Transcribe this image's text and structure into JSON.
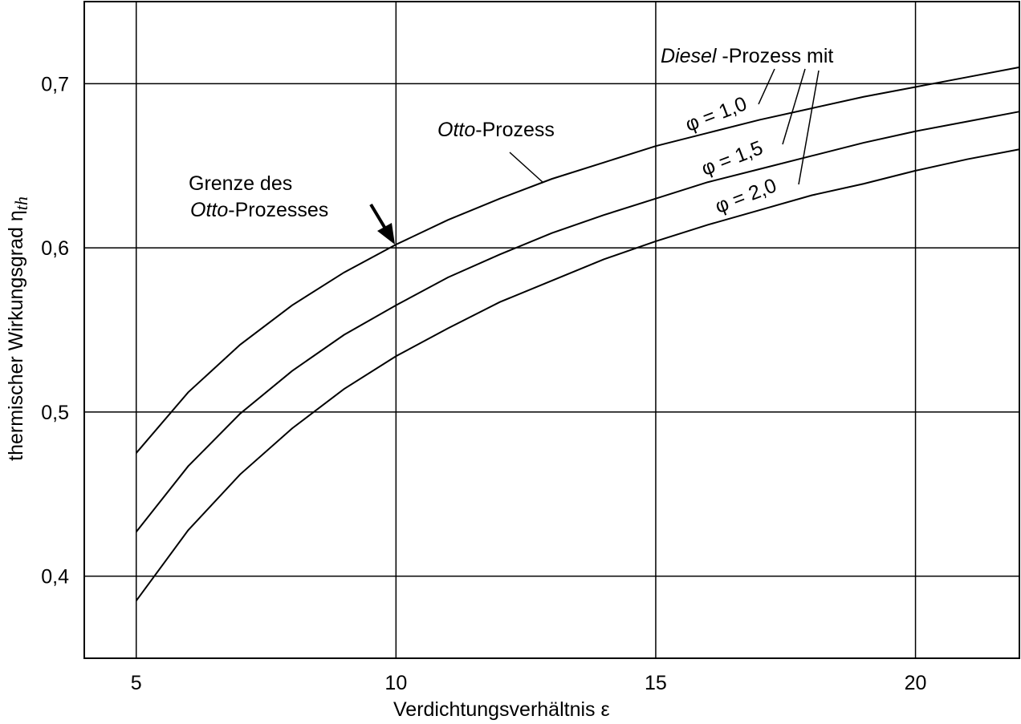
{
  "chart_data": {
    "type": "line",
    "x_label": "Verdichtungsverhältnis ε",
    "y_label": "thermischer Wirkungsgrad η",
    "y_label_sub": "th",
    "x": [
      5,
      6,
      7,
      8,
      9,
      10,
      11,
      12,
      13,
      14,
      15,
      16,
      17,
      18,
      19,
      20,
      21,
      22
    ],
    "series": [
      {
        "name": "φ = 1,0",
        "color": "#000000",
        "values": [
          0.475,
          0.512,
          0.541,
          0.565,
          0.585,
          0.602,
          0.617,
          0.63,
          0.642,
          0.652,
          0.662,
          0.67,
          0.678,
          0.685,
          0.692,
          0.698,
          0.704,
          0.71
        ]
      },
      {
        "name": "φ = 1,5",
        "color": "#000000",
        "values": [
          0.427,
          0.467,
          0.499,
          0.525,
          0.547,
          0.565,
          0.582,
          0.596,
          0.609,
          0.62,
          0.63,
          0.64,
          0.648,
          0.656,
          0.664,
          0.671,
          0.677,
          0.683
        ]
      },
      {
        "name": "φ = 2,0",
        "color": "#000000",
        "values": [
          0.385,
          0.428,
          0.462,
          0.49,
          0.514,
          0.534,
          0.551,
          0.567,
          0.58,
          0.593,
          0.604,
          0.614,
          0.623,
          0.632,
          0.639,
          0.647,
          0.654,
          0.66
        ]
      }
    ],
    "xlim": [
      4,
      22
    ],
    "ylim": [
      0.35,
      0.75
    ],
    "xticks": [
      5,
      10,
      15,
      20
    ],
    "yticks": [
      {
        "value": 0.4,
        "label": "0,4"
      },
      {
        "value": 0.5,
        "label": "0,5"
      },
      {
        "value": 0.6,
        "label": "0,6"
      },
      {
        "value": 0.7,
        "label": "0,7"
      }
    ],
    "grid": true,
    "annotations": {
      "otto": {
        "italic": "Otto",
        "rest": "-Prozess"
      },
      "diesel": {
        "italic": "Diesel",
        "rest": " -Prozess mit"
      },
      "grenze": {
        "line1": "Grenze des",
        "italic": "Otto",
        "rest": "-Prozesses"
      }
    }
  }
}
